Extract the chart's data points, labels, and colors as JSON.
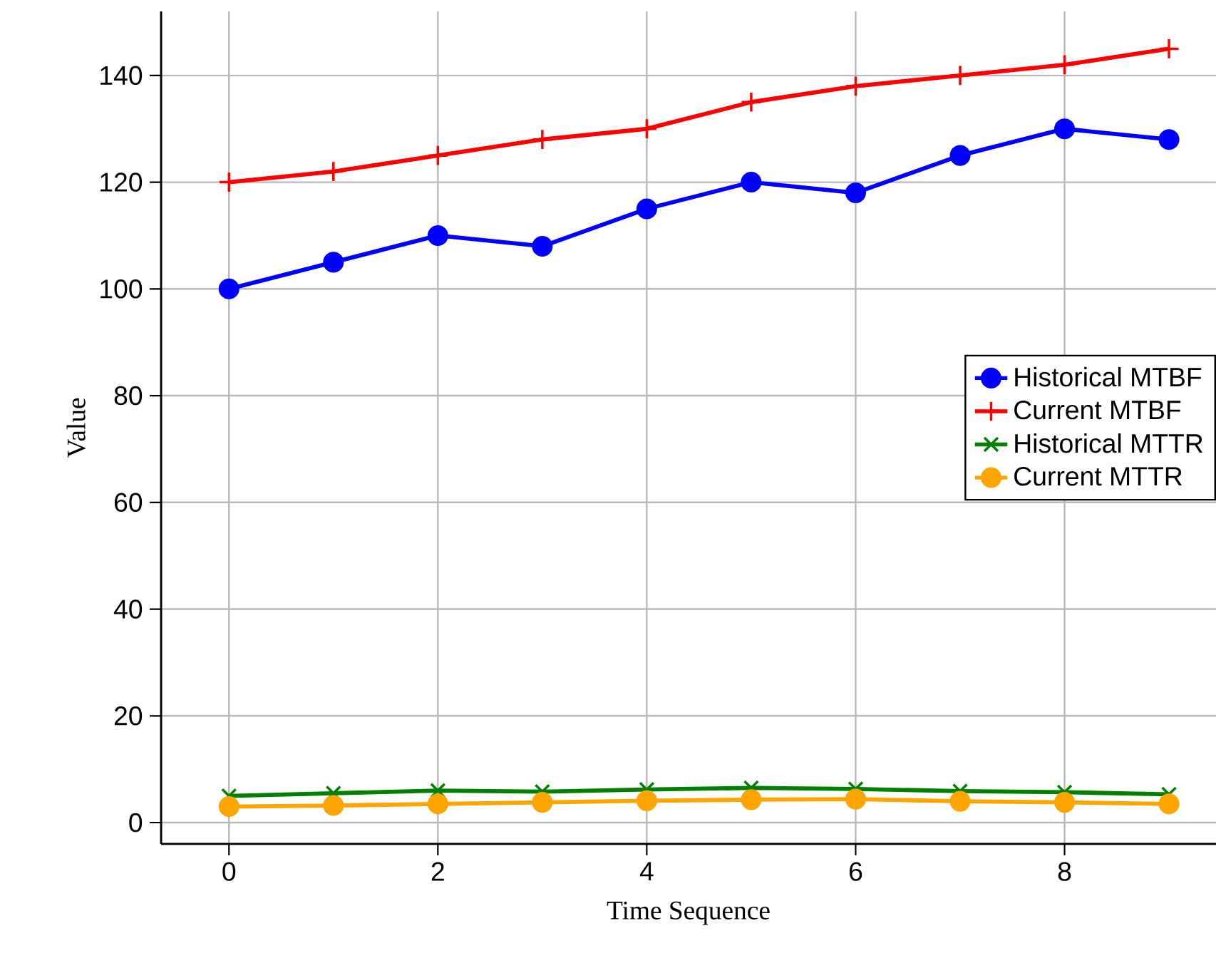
{
  "chart_data": {
    "type": "line",
    "xlabel": "Time Sequence",
    "ylabel": "Value",
    "x": [
      0,
      1,
      2,
      3,
      4,
      5,
      6,
      7,
      8,
      9
    ],
    "series": [
      {
        "name": "Historical MTBF",
        "color": "#0000ff",
        "marker": "circle",
        "values": [
          100,
          105,
          110,
          108,
          115,
          120,
          118,
          125,
          130,
          128
        ]
      },
      {
        "name": "Current MTBF",
        "color": "#ff0000",
        "marker": "plus",
        "values": [
          120,
          122,
          125,
          128,
          130,
          135,
          138,
          140,
          142,
          145
        ]
      },
      {
        "name": "Historical MTTR",
        "color": "#008000",
        "marker": "x",
        "values": [
          5,
          5.5,
          6,
          5.8,
          6.2,
          6.5,
          6.3,
          5.9,
          5.7,
          5.3
        ]
      },
      {
        "name": "Current MTTR",
        "color": "#ffa500",
        "marker": "circle",
        "values": [
          3,
          3.2,
          3.5,
          3.8,
          4.1,
          4.3,
          4.4,
          4.0,
          3.8,
          3.5
        ]
      }
    ],
    "xlim": [
      -0.65,
      9.45
    ],
    "ylim": [
      -4,
      152
    ],
    "xticks": [
      0,
      2,
      4,
      6,
      8
    ],
    "yticks": [
      0,
      20,
      40,
      60,
      80,
      100,
      120,
      140
    ],
    "grid": true,
    "legend": "right",
    "line_style": "solid"
  }
}
